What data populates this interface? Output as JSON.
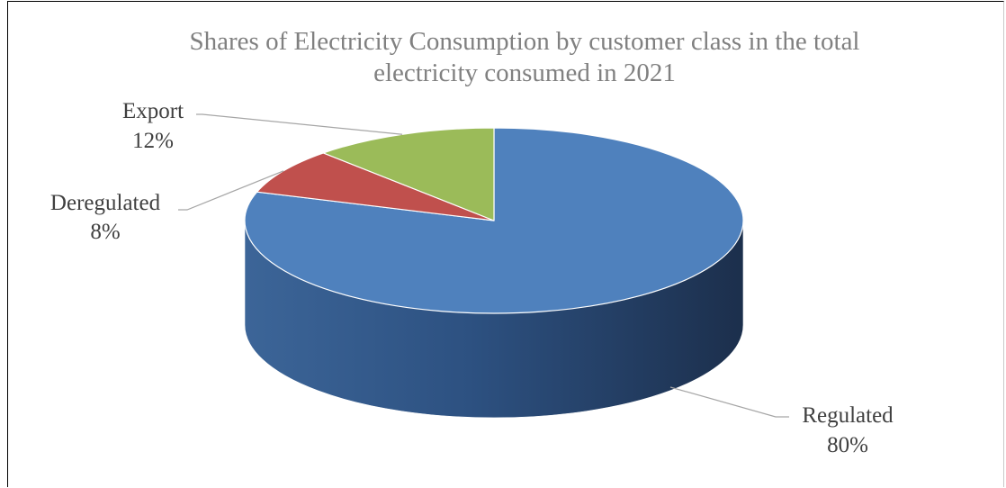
{
  "chart_data": {
    "type": "pie",
    "style": "3d",
    "title_lines": [
      "Shares of Electricity Consumption by customer class in the total",
      "electricity consumed in 2021"
    ],
    "categories": [
      "Regulated",
      "Deregulated",
      "Export"
    ],
    "values": [
      80,
      8,
      12
    ],
    "value_labels": [
      "80%",
      "8%",
      "12%"
    ],
    "colors": [
      "#4f81bd",
      "#c0504d",
      "#9bbb59"
    ],
    "side_colors": [
      "#2c4d75",
      "#7a2e2c",
      "#5e7331"
    ],
    "leader_line_color": "#a6a6a6",
    "legend": "none"
  }
}
